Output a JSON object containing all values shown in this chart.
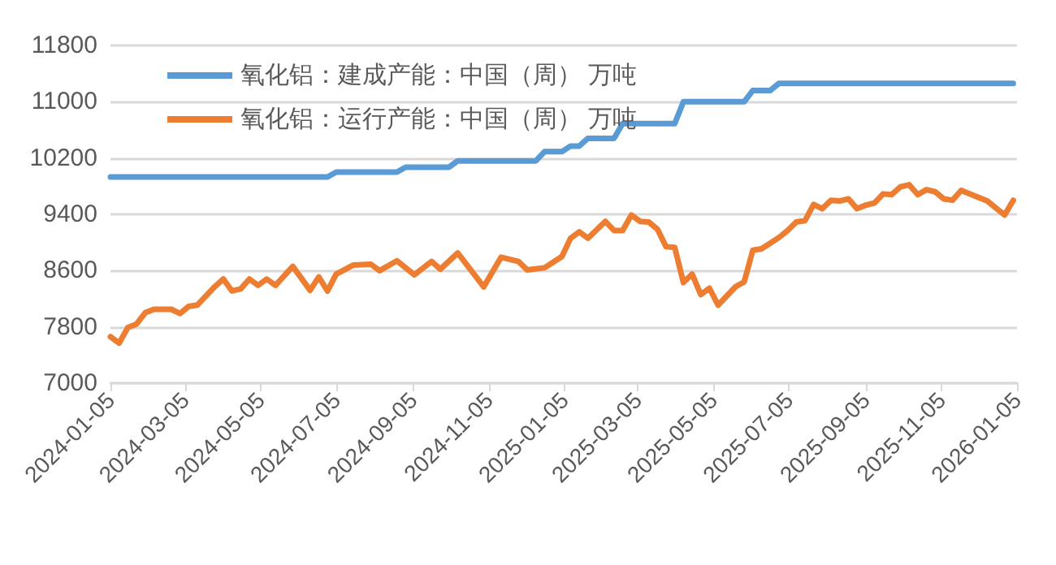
{
  "chart_data": {
    "type": "line",
    "xlim": [
      "2024-01-05",
      "2026-01-05"
    ],
    "xticks": [
      "2024-01-05",
      "2024-03-05",
      "2024-05-05",
      "2024-07-05",
      "2024-09-05",
      "2024-11-05",
      "2025-01-05",
      "2025-03-05",
      "2025-05-05",
      "2025-07-05",
      "2025-09-05",
      "2025-11-05",
      "2026-01-05"
    ],
    "ylim": [
      7000,
      11800
    ],
    "yticks": [
      7000,
      7800,
      8600,
      9400,
      10200,
      11000,
      11800
    ],
    "grid": "y",
    "legend": "top left",
    "marker": "none",
    "line_style": "solid",
    "series": [
      {
        "name": "氧化铝：建成产能：中国（周） 万吨",
        "color": "#5b9bd5",
        "x": [
          "2024-01-05",
          "2024-06-28",
          "2024-07-05",
          "2024-08-23",
          "2024-08-30",
          "2024-10-04",
          "2024-10-11",
          "2024-12-13",
          "2024-12-20",
          "2025-01-03",
          "2025-01-10",
          "2025-01-17",
          "2025-01-24",
          "2025-02-14",
          "2025-02-21",
          "2025-04-04",
          "2025-04-11",
          "2025-05-30",
          "2025-06-06",
          "2025-06-20",
          "2025-06-27",
          "2026-01-02"
        ],
        "values": [
          9930,
          9930,
          10000,
          10000,
          10070,
          10070,
          10160,
          10160,
          10290,
          10290,
          10370,
          10370,
          10480,
          10480,
          10690,
          10690,
          11000,
          11000,
          11160,
          11160,
          11260,
          11260
        ]
      },
      {
        "name": "氧化铝：运行产能：中国（周） 万吨",
        "color": "#ed7d31",
        "x": [
          "2024-01-05",
          "2024-01-12",
          "2024-01-19",
          "2024-01-26",
          "2024-02-02",
          "2024-02-09",
          "2024-02-23",
          "2024-03-01",
          "2024-03-08",
          "2024-03-15",
          "2024-03-29",
          "2024-04-05",
          "2024-04-12",
          "2024-04-19",
          "2024-04-26",
          "2024-05-03",
          "2024-05-10",
          "2024-05-17",
          "2024-05-31",
          "2024-06-14",
          "2024-06-21",
          "2024-06-28",
          "2024-07-05",
          "2024-07-19",
          "2024-08-02",
          "2024-08-09",
          "2024-08-23",
          "2024-09-06",
          "2024-09-20",
          "2024-09-27",
          "2024-10-11",
          "2024-11-01",
          "2024-11-15",
          "2024-11-29",
          "2024-12-06",
          "2024-12-20",
          "2025-01-03",
          "2025-01-10",
          "2025-01-17",
          "2025-01-24",
          "2025-02-07",
          "2025-02-14",
          "2025-02-21",
          "2025-02-28",
          "2025-03-07",
          "2025-03-14",
          "2025-03-21",
          "2025-03-28",
          "2025-04-04",
          "2025-04-11",
          "2025-04-18",
          "2025-04-25",
          "2025-05-02",
          "2025-05-09",
          "2025-05-16",
          "2025-05-23",
          "2025-05-30",
          "2025-06-06",
          "2025-06-13",
          "2025-06-27",
          "2025-07-04",
          "2025-07-11",
          "2025-07-18",
          "2025-07-25",
          "2025-08-01",
          "2025-08-08",
          "2025-08-15",
          "2025-08-22",
          "2025-08-29",
          "2025-09-05",
          "2025-09-12",
          "2025-09-19",
          "2025-09-26",
          "2025-10-03",
          "2025-10-10",
          "2025-10-17",
          "2025-10-24",
          "2025-10-31",
          "2025-11-07",
          "2025-11-14",
          "2025-11-21",
          "2025-12-05",
          "2025-12-12",
          "2025-12-19",
          "2025-12-26",
          "2026-01-02"
        ],
        "values": [
          7660,
          7570,
          7790,
          7840,
          8000,
          8050,
          8050,
          7990,
          8090,
          8110,
          8370,
          8480,
          8310,
          8340,
          8480,
          8390,
          8480,
          8390,
          8660,
          8320,
          8510,
          8310,
          8550,
          8680,
          8690,
          8600,
          8740,
          8540,
          8730,
          8620,
          8850,
          8370,
          8790,
          8730,
          8610,
          8640,
          8800,
          9060,
          9150,
          9060,
          9300,
          9170,
          9170,
          9390,
          9300,
          9290,
          9190,
          8940,
          8930,
          8430,
          8550,
          8260,
          8350,
          8110,
          8240,
          8370,
          8440,
          8890,
          8910,
          9070,
          9170,
          9290,
          9310,
          9540,
          9480,
          9600,
          9590,
          9620,
          9480,
          9530,
          9560,
          9690,
          9680,
          9790,
          9820,
          9680,
          9750,
          9720,
          9620,
          9600,
          9740,
          9640,
          9590,
          9490,
          9390,
          9600
        ]
      }
    ]
  }
}
